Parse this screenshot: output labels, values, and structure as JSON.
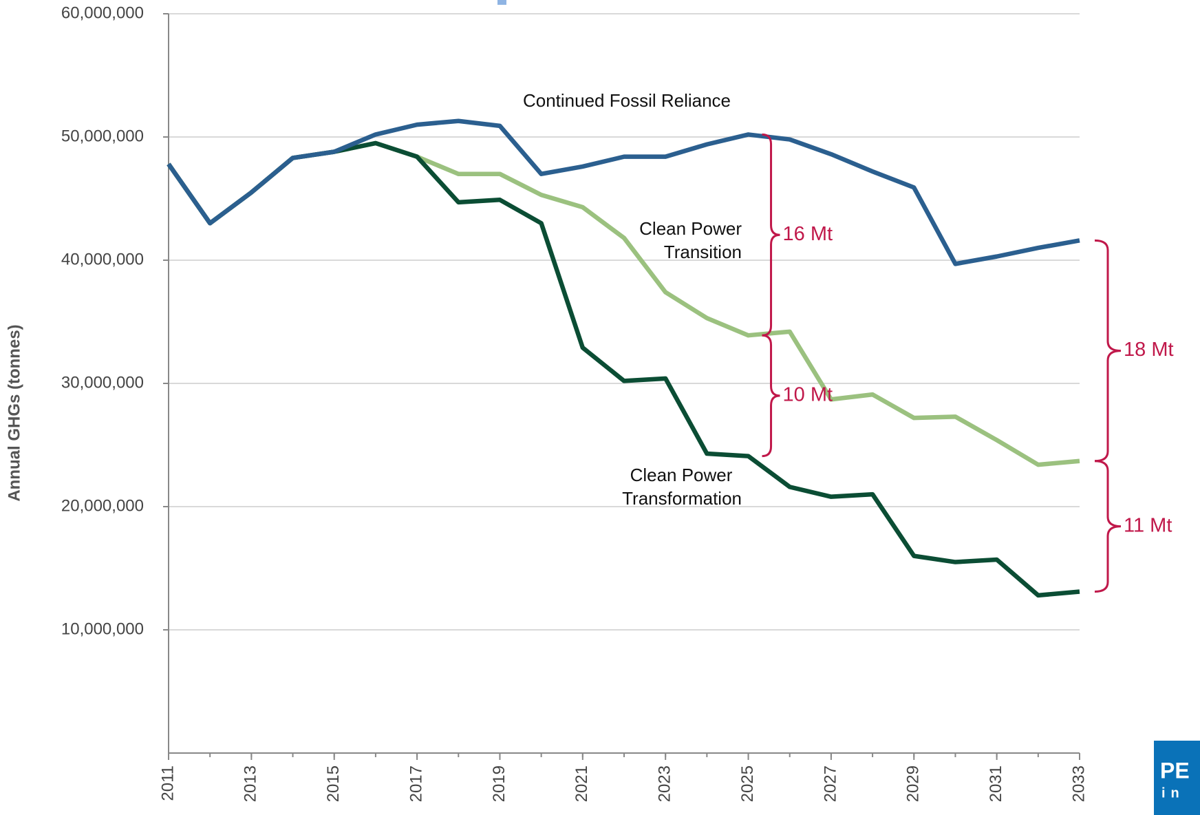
{
  "chart_data": {
    "type": "line",
    "y_label": "Annual GHGs (tonnes)",
    "x": [
      2011,
      2012,
      2013,
      2014,
      2015,
      2016,
      2017,
      2018,
      2019,
      2020,
      2021,
      2022,
      2023,
      2024,
      2025,
      2026,
      2027,
      2028,
      2029,
      2030,
      2031,
      2032,
      2033
    ],
    "xlim": [
      2011,
      2033
    ],
    "xticks": [
      2011,
      2013,
      2015,
      2017,
      2019,
      2021,
      2023,
      2025,
      2027,
      2029,
      2031,
      2033
    ],
    "ylim": [
      0,
      60000000
    ],
    "yticks": [
      {
        "value": 10000000,
        "label": "10,000,000"
      },
      {
        "value": 20000000,
        "label": "20,000,000"
      },
      {
        "value": 30000000,
        "label": "30,000,000"
      },
      {
        "value": 40000000,
        "label": "40,000,000"
      },
      {
        "value": 50000000,
        "label": "50,000,000"
      },
      {
        "value": 60000000,
        "label": "60,000,000"
      }
    ],
    "grid": true,
    "series": [
      {
        "name": "Clean Power Transition",
        "color": "#9bc17f",
        "values": [
          47800000,
          43000000,
          45500000,
          48300000,
          48800000,
          49500000,
          48400000,
          47000000,
          47000000,
          45300000,
          44300000,
          41800000,
          37400000,
          35300000,
          33900000,
          34200000,
          28700000,
          29100000,
          27200000,
          27300000,
          25400000,
          23400000,
          23700000
        ]
      },
      {
        "name": "Clean Power Transformation",
        "color": "#0b4d34",
        "values": [
          47800000,
          43000000,
          45500000,
          48300000,
          48800000,
          49500000,
          48400000,
          44700000,
          44900000,
          43000000,
          32900000,
          30200000,
          30400000,
          24300000,
          24100000,
          21600000,
          20800000,
          21000000,
          16000000,
          15500000,
          15700000,
          12800000,
          13100000
        ]
      },
      {
        "name": "Continued Fossil Reliance",
        "color": "#2b5f8f",
        "values": [
          47800000,
          43000000,
          45500000,
          48300000,
          48800000,
          50200000,
          51000000,
          51300000,
          50900000,
          47000000,
          47600000,
          48400000,
          48400000,
          49400000,
          50200000,
          49800000,
          48600000,
          47200000,
          45900000,
          39700000,
          40300000,
          41000000,
          41600000
        ]
      }
    ],
    "annotations": [
      {
        "text": "16 Mt",
        "color": "#c0184a"
      },
      {
        "text": "10 Mt",
        "color": "#c0184a"
      },
      {
        "text": "18 Mt",
        "color": "#c0184a"
      },
      {
        "text": "11 Mt",
        "color": "#c0184a"
      }
    ],
    "logo": [
      "PE",
      "in"
    ]
  }
}
